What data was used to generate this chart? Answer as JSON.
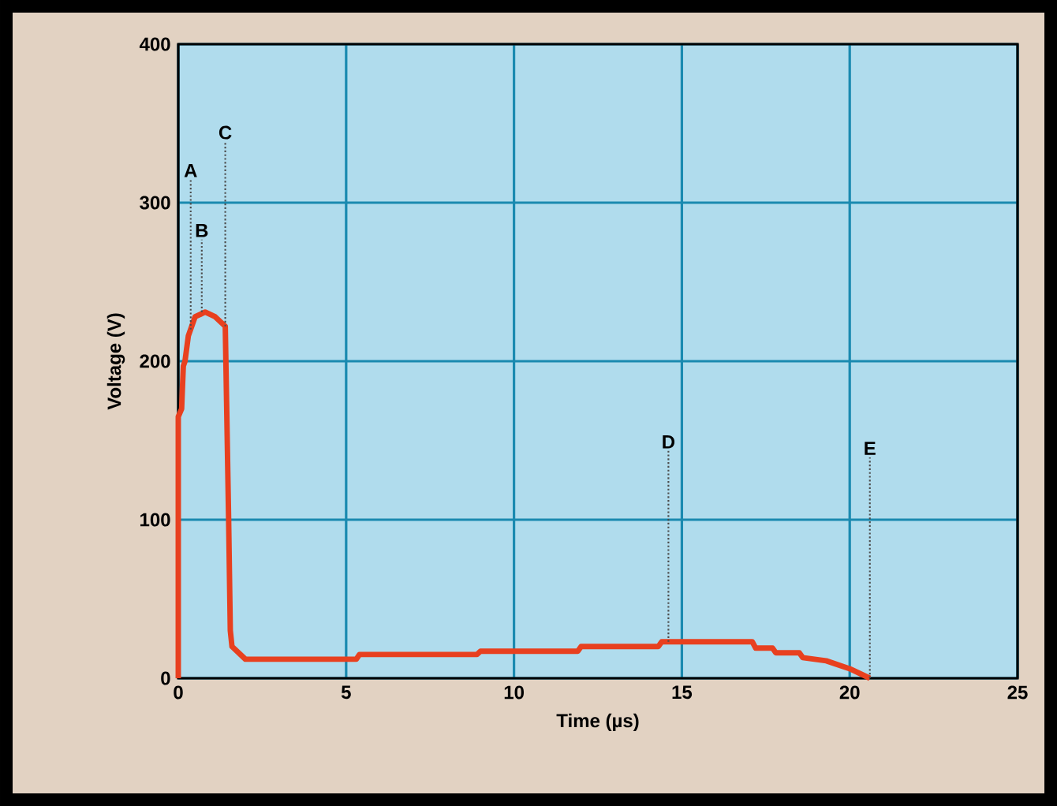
{
  "chart_data": {
    "type": "line",
    "xlabel": "Time (µs)",
    "ylabel": "Voltage (V)",
    "xlim": [
      0,
      25
    ],
    "ylim": [
      0,
      400
    ],
    "xticks": [
      0,
      5,
      10,
      15,
      20,
      25
    ],
    "yticks": [
      0,
      100,
      200,
      300,
      400
    ],
    "grid": true,
    "marker": "none",
    "line_style": "solid",
    "series": [
      {
        "color": "#e8401f",
        "x": [
          0,
          0,
          0.1,
          0.15,
          0.2,
          0.3,
          0.5,
          0.8,
          1.1,
          1.4,
          1.5,
          1.55,
          1.6,
          2.0,
          5.3,
          5.4,
          8.9,
          9.0,
          11.9,
          12.0,
          14.3,
          14.4,
          17.1,
          17.2,
          17.7,
          17.8,
          18.5,
          18.6,
          19.3,
          20.0,
          20.6
        ],
        "values": [
          0,
          165,
          170,
          197,
          200,
          216,
          228,
          231,
          228,
          222,
          100,
          30,
          20,
          12,
          12,
          15,
          15,
          17,
          17,
          20,
          20,
          23,
          23,
          19,
          19,
          16,
          16,
          13,
          11,
          6,
          0
        ]
      }
    ],
    "annotations": [
      {
        "text": "A",
        "x": 0.37,
        "y": 220
      },
      {
        "text": "B",
        "x": 0.7,
        "y": 231
      },
      {
        "text": "C",
        "x": 1.4,
        "y": 222
      },
      {
        "text": "D",
        "x": 14.6,
        "y": 23
      },
      {
        "text": "E",
        "x": 20.6,
        "y": 0
      }
    ]
  }
}
